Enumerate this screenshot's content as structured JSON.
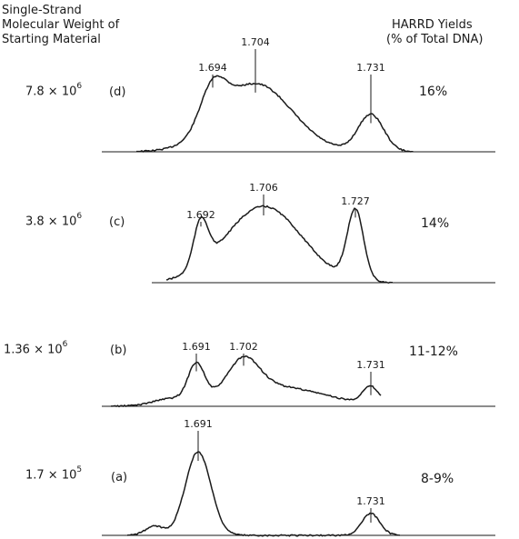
{
  "header": {
    "left_lines": [
      "Single-Strand",
      "Molecular Weight of",
      "Starting Material"
    ],
    "right_lines": [
      "HARRD Yields",
      "(% of Total DNA)"
    ]
  },
  "chart_data": {
    "type": "line",
    "title": "",
    "xlabel": "",
    "ylabel": "",
    "grid": false,
    "panels": [
      {
        "label": "(d)",
        "mw": {
          "base": "7.8 × 10",
          "exp": "6"
        },
        "yield": "16%",
        "peaks": [
          {
            "label": "1.694"
          },
          {
            "label": "1.704"
          },
          {
            "label": "1.731"
          }
        ]
      },
      {
        "label": "(c)",
        "mw": {
          "base": "3.8 × 10",
          "exp": "6"
        },
        "yield": "14%",
        "peaks": [
          {
            "label": "1.692"
          },
          {
            "label": "1.706"
          },
          {
            "label": "1.727"
          }
        ]
      },
      {
        "label": "(b)",
        "mw": {
          "base": "1.36 × 10",
          "exp": "6"
        },
        "yield": "11-12%",
        "peaks": [
          {
            "label": "1.691"
          },
          {
            "label": "1.702"
          },
          {
            "label": "1.731"
          }
        ]
      },
      {
        "label": "(a)",
        "mw": {
          "base": "1.7 × 10",
          "exp": "5"
        },
        "yield": "8-9%",
        "peaks": [
          {
            "label": "1.691"
          },
          {
            "label": "1.731"
          }
        ]
      }
    ]
  }
}
